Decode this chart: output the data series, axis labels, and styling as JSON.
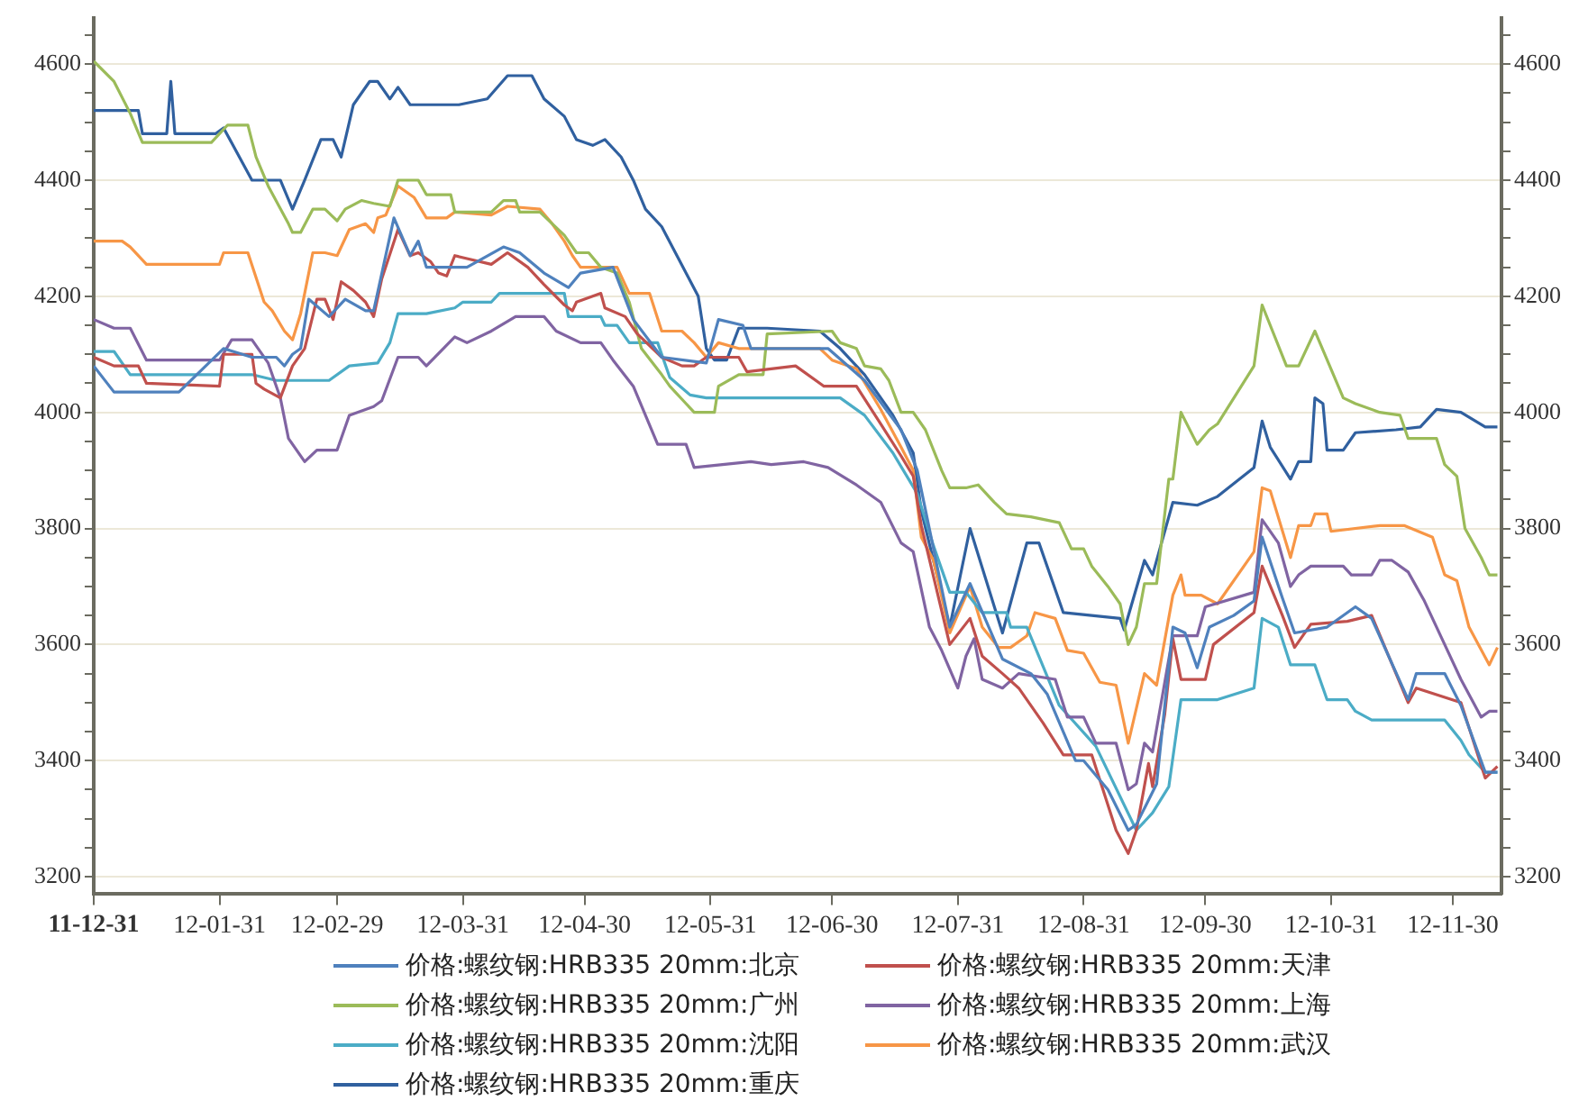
{
  "chart_data": {
    "type": "line",
    "grid": "y",
    "legend": "bottom",
    "marker": "none",
    "line_style": "solid",
    "xlim": [
      "2011-12-31",
      "2012-12-12"
    ],
    "xticks": [
      {
        "value": "2011-12-31",
        "label": "11-12-31"
      },
      {
        "value": "2012-01-31",
        "label": "12-01-31"
      },
      {
        "value": "2012-02-29",
        "label": "12-02-29"
      },
      {
        "value": "2012-03-31",
        "label": "12-03-31"
      },
      {
        "value": "2012-04-30",
        "label": "12-04-30"
      },
      {
        "value": "2012-05-31",
        "label": "12-05-31"
      },
      {
        "value": "2012-06-30",
        "label": "12-06-30"
      },
      {
        "value": "2012-07-31",
        "label": "12-07-31"
      },
      {
        "value": "2012-08-31",
        "label": "12-08-31"
      },
      {
        "value": "2012-09-30",
        "label": "12-09-30"
      },
      {
        "value": "2012-10-31",
        "label": "12-10-31"
      },
      {
        "value": "2012-11-30",
        "label": "12-11-30"
      }
    ],
    "ylim": [
      3170,
      4680
    ],
    "yticks": [
      3200,
      {
        "value": 3250,
        "label": null
      },
      {
        "value": 3300,
        "label": null
      },
      {
        "value": 3350,
        "label": null
      },
      3400,
      {
        "value": 3450,
        "label": null
      },
      {
        "value": 3500,
        "label": null
      },
      {
        "value": 3550,
        "label": null
      },
      3600,
      {
        "value": 3650,
        "label": null
      },
      {
        "value": 3700,
        "label": null
      },
      {
        "value": 3750,
        "label": null
      },
      3800,
      {
        "value": 3850,
        "label": null
      },
      {
        "value": 3900,
        "label": null
      },
      {
        "value": 3950,
        "label": null
      },
      4000,
      {
        "value": 4050,
        "label": null
      },
      {
        "value": 4100,
        "label": null
      },
      {
        "value": 4150,
        "label": null
      },
      4200,
      {
        "value": 4250,
        "label": null
      },
      {
        "value": 4300,
        "label": null
      },
      {
        "value": 4350,
        "label": null
      },
      4400,
      {
        "value": 4450,
        "label": null
      },
      {
        "value": 4500,
        "label": null
      },
      {
        "value": 4550,
        "label": null
      },
      4600,
      {
        "value": 4650,
        "label": null
      }
    ],
    "y2lim": [
      3170,
      4680
    ],
    "y2ticks": [
      3200,
      {
        "value": 3250,
        "label": null
      },
      {
        "value": 3300,
        "label": null
      },
      {
        "value": 3350,
        "label": null
      },
      3400,
      {
        "value": 3450,
        "label": null
      },
      {
        "value": 3500,
        "label": null
      },
      {
        "value": 3550,
        "label": null
      },
      3600,
      {
        "value": 3650,
        "label": null
      },
      {
        "value": 3700,
        "label": null
      },
      {
        "value": 3750,
        "label": null
      },
      3800,
      {
        "value": 3850,
        "label": null
      },
      {
        "value": 3900,
        "label": null
      },
      {
        "value": 3950,
        "label": null
      },
      4000,
      {
        "value": 4050,
        "label": null
      },
      {
        "value": 4100,
        "label": null
      },
      {
        "value": 4150,
        "label": null
      },
      4200,
      {
        "value": 4250,
        "label": null
      },
      {
        "value": 4300,
        "label": null
      },
      {
        "value": 4350,
        "label": null
      },
      4400,
      {
        "value": 4450,
        "label": null
      },
      {
        "value": 4500,
        "label": null
      },
      {
        "value": 4550,
        "label": null
      },
      4600,
      {
        "value": 4650,
        "label": null
      }
    ],
    "series": [
      {
        "name": "价格:螺纹钢:HRB335 20mm:北京",
        "color": "#4f81bd",
        "x": [
          "2011-12-31",
          "2012-01-05",
          "2012-01-21",
          "2012-02-01",
          "2012-02-08",
          "2012-02-14",
          "2012-02-16",
          "2012-02-18",
          "2012-02-20",
          "2012-02-22",
          "2012-02-27",
          "2012-03-02",
          "2012-03-07",
          "2012-03-09",
          "2012-03-14",
          "2012-03-18",
          "2012-03-20",
          "2012-03-22",
          "2012-04-01",
          "2012-04-10",
          "2012-04-14",
          "2012-04-20",
          "2012-04-26",
          "2012-04-29",
          "2012-05-07",
          "2012-05-12",
          "2012-05-19",
          "2012-05-30",
          "2012-06-02",
          "2012-06-08",
          "2012-06-10",
          "2012-06-29",
          "2012-07-08",
          "2012-07-17",
          "2012-07-21",
          "2012-07-29",
          "2012-08-03",
          "2012-08-11",
          "2012-08-18",
          "2012-08-22",
          "2012-08-29",
          "2012-08-31",
          "2012-09-06",
          "2012-09-11",
          "2012-09-13",
          "2012-09-18",
          "2012-09-22",
          "2012-09-25",
          "2012-09-28",
          "2012-10-01",
          "2012-10-07",
          "2012-10-12",
          "2012-10-14",
          "2012-10-19",
          "2012-10-22",
          "2012-10-30",
          "2012-11-06",
          "2012-11-10",
          "2012-11-19",
          "2012-11-21",
          "2012-11-28",
          "2012-12-02",
          "2012-12-08",
          "2012-12-11"
        ],
        "values": [
          4080,
          4035,
          4035,
          4110,
          4095,
          4095,
          4080,
          4100,
          4110,
          4195,
          4165,
          4195,
          4175,
          4175,
          4335,
          4270,
          4295,
          4250,
          4250,
          4285,
          4275,
          4240,
          4215,
          4240,
          4250,
          4160,
          4095,
          4085,
          4160,
          4150,
          4110,
          4110,
          4055,
          3970,
          3900,
          3630,
          3705,
          3575,
          3550,
          3515,
          3400,
          3400,
          3350,
          3280,
          3290,
          3360,
          3630,
          3620,
          3560,
          3630,
          3650,
          3675,
          3785,
          3680,
          3620,
          3630,
          3665,
          3645,
          3505,
          3550,
          3550,
          3495,
          3380,
          3380
        ]
      },
      {
        "name": "价格:螺纹钢:HRB335 20mm:天津",
        "color": "#c0504d",
        "x": [
          "2011-12-31",
          "2012-01-05",
          "2012-01-11",
          "2012-01-13",
          "2012-01-31",
          "2012-02-01",
          "2012-02-08",
          "2012-02-09",
          "2012-02-11",
          "2012-02-15",
          "2012-02-18",
          "2012-02-21",
          "2012-02-24",
          "2012-02-26",
          "2012-02-28",
          "2012-03-01",
          "2012-03-04",
          "2012-03-07",
          "2012-03-09",
          "2012-03-11",
          "2012-03-15",
          "2012-03-18",
          "2012-03-20",
          "2012-03-23",
          "2012-03-25",
          "2012-03-27",
          "2012-03-29",
          "2012-04-01",
          "2012-04-07",
          "2012-04-11",
          "2012-04-16",
          "2012-04-20",
          "2012-04-25",
          "2012-04-27",
          "2012-04-28",
          "2012-05-04",
          "2012-05-05",
          "2012-05-10",
          "2012-05-13",
          "2012-05-19",
          "2012-05-24",
          "2012-05-27",
          "2012-05-30",
          "2012-06-07",
          "2012-06-09",
          "2012-06-21",
          "2012-06-28",
          "2012-07-06",
          "2012-07-12",
          "2012-07-17",
          "2012-07-20",
          "2012-07-22",
          "2012-07-29",
          "2012-08-03",
          "2012-08-06",
          "2012-08-11",
          "2012-08-15",
          "2012-08-21",
          "2012-08-26",
          "2012-09-02",
          "2012-09-08",
          "2012-09-11",
          "2012-09-13",
          "2012-09-16",
          "2012-09-17",
          "2012-09-20",
          "2012-09-22",
          "2012-09-24",
          "2012-09-30",
          "2012-10-02",
          "2012-10-12",
          "2012-10-14",
          "2012-10-19",
          "2012-10-22",
          "2012-10-26",
          "2012-11-04",
          "2012-11-10",
          "2012-11-19",
          "2012-11-21",
          "2012-12-02",
          "2012-12-08",
          "2012-12-11"
        ],
        "values": [
          4095,
          4080,
          4080,
          4050,
          4045,
          4100,
          4100,
          4050,
          4040,
          4025,
          4080,
          4110,
          4195,
          4195,
          4160,
          4225,
          4210,
          4190,
          4165,
          4230,
          4315,
          4270,
          4275,
          4260,
          4240,
          4235,
          4270,
          4265,
          4255,
          4275,
          4250,
          4220,
          4185,
          4175,
          4190,
          4205,
          4180,
          4165,
          4135,
          4095,
          4080,
          4080,
          4095,
          4095,
          4070,
          4080,
          4045,
          4045,
          3980,
          3925,
          3890,
          3805,
          3600,
          3645,
          3580,
          3550,
          3525,
          3465,
          3410,
          3410,
          3280,
          3240,
          3280,
          3395,
          3355,
          3480,
          3610,
          3540,
          3540,
          3600,
          3655,
          3735,
          3650,
          3595,
          3635,
          3640,
          3650,
          3500,
          3525,
          3500,
          3370,
          3390
        ]
      },
      {
        "name": "价格:螺纹钢:HRB335 20mm:广州",
        "color": "#9bbb59",
        "x": [
          "2011-12-31",
          "2012-01-05",
          "2012-01-09",
          "2012-01-12",
          "2012-01-29",
          "2012-02-02",
          "2012-02-07",
          "2012-02-09",
          "2012-02-12",
          "2012-02-17",
          "2012-02-18",
          "2012-02-20",
          "2012-02-23",
          "2012-02-26",
          "2012-02-29",
          "2012-03-02",
          "2012-03-06",
          "2012-03-09",
          "2012-03-13",
          "2012-03-15",
          "2012-03-20",
          "2012-03-22",
          "2012-03-28",
          "2012-03-29",
          "2012-04-07",
          "2012-04-10",
          "2012-04-13",
          "2012-04-14",
          "2012-04-19",
          "2012-04-25",
          "2012-04-28",
          "2012-05-01",
          "2012-05-04",
          "2012-05-08",
          "2012-05-11",
          "2012-05-14",
          "2012-05-19",
          "2012-05-21",
          "2012-05-27",
          "2012-06-01",
          "2012-06-02",
          "2012-06-07",
          "2012-06-13",
          "2012-06-14",
          "2012-06-30",
          "2012-07-02",
          "2012-07-06",
          "2012-07-08",
          "2012-07-12",
          "2012-07-14",
          "2012-07-17",
          "2012-07-20",
          "2012-07-23",
          "2012-07-27",
          "2012-07-29",
          "2012-08-02",
          "2012-08-05",
          "2012-08-09",
          "2012-08-12",
          "2012-08-18",
          "2012-08-25",
          "2012-08-28",
          "2012-08-31",
          "2012-09-02",
          "2012-09-06",
          "2012-09-09",
          "2012-09-11",
          "2012-09-13",
          "2012-09-15",
          "2012-09-18",
          "2012-09-21",
          "2012-09-22",
          "2012-09-24",
          "2012-09-28",
          "2012-10-01",
          "2012-10-03",
          "2012-10-12",
          "2012-10-14",
          "2012-10-20",
          "2012-10-23",
          "2012-10-27",
          "2012-11-03",
          "2012-11-06",
          "2012-11-12",
          "2012-11-17",
          "2012-11-19",
          "2012-11-26",
          "2012-11-28",
          "2012-12-01",
          "2012-12-03",
          "2012-12-07",
          "2012-12-09",
          "2012-12-11"
        ],
        "values": [
          4605,
          4570,
          4515,
          4465,
          4465,
          4495,
          4495,
          4440,
          4390,
          4325,
          4310,
          4310,
          4350,
          4350,
          4330,
          4350,
          4365,
          4360,
          4355,
          4400,
          4400,
          4375,
          4375,
          4345,
          4345,
          4365,
          4365,
          4345,
          4345,
          4305,
          4275,
          4275,
          4250,
          4240,
          4190,
          4110,
          4065,
          4045,
          4000,
          4000,
          4045,
          4065,
          4065,
          4135,
          4140,
          4120,
          4110,
          4080,
          4075,
          4055,
          4000,
          4000,
          3970,
          3900,
          3870,
          3870,
          3875,
          3845,
          3825,
          3820,
          3810,
          3765,
          3765,
          3735,
          3700,
          3670,
          3600,
          3630,
          3705,
          3705,
          3885,
          3885,
          4000,
          3945,
          3970,
          3980,
          4080,
          4185,
          4080,
          4080,
          4140,
          4025,
          4015,
          4000,
          3995,
          3955,
          3955,
          3910,
          3890,
          3800,
          3750,
          3720,
          3720
        ]
      },
      {
        "name": "价格:螺纹钢:HRB335 20mm:上海",
        "color": "#8064a2",
        "x": [
          "2011-12-31",
          "2012-01-05",
          "2012-01-09",
          "2012-01-13",
          "2012-01-31",
          "2012-02-03",
          "2012-02-08",
          "2012-02-12",
          "2012-02-15",
          "2012-02-17",
          "2012-02-21",
          "2012-02-24",
          "2012-02-29",
          "2012-03-03",
          "2012-03-09",
          "2012-03-11",
          "2012-03-15",
          "2012-03-20",
          "2012-03-22",
          "2012-03-29",
          "2012-04-01",
          "2012-04-07",
          "2012-04-13",
          "2012-04-20",
          "2012-04-23",
          "2012-04-29",
          "2012-05-04",
          "2012-05-07",
          "2012-05-12",
          "2012-05-18",
          "2012-05-25",
          "2012-05-27",
          "2012-06-10",
          "2012-06-15",
          "2012-06-23",
          "2012-06-29",
          "2012-07-06",
          "2012-07-12",
          "2012-07-17",
          "2012-07-20",
          "2012-07-24",
          "2012-07-27",
          "2012-07-31",
          "2012-08-02",
          "2012-08-04",
          "2012-08-06",
          "2012-08-11",
          "2012-08-15",
          "2012-08-24",
          "2012-08-27",
          "2012-08-31",
          "2012-09-03",
          "2012-09-08",
          "2012-09-11",
          "2012-09-13",
          "2012-09-15",
          "2012-09-17",
          "2012-09-22",
          "2012-09-28",
          "2012-09-30",
          "2012-10-12",
          "2012-10-14",
          "2012-10-18",
          "2012-10-21",
          "2012-10-23",
          "2012-10-26",
          "2012-11-03",
          "2012-11-05",
          "2012-11-10",
          "2012-11-12",
          "2012-11-15",
          "2012-11-19",
          "2012-11-23",
          "2012-11-28",
          "2012-12-02",
          "2012-12-07",
          "2012-12-09",
          "2012-12-11"
        ],
        "values": [
          4160,
          4145,
          4145,
          4090,
          4090,
          4125,
          4125,
          4085,
          4025,
          3955,
          3915,
          3935,
          3935,
          3995,
          4010,
          4020,
          4095,
          4095,
          4080,
          4130,
          4120,
          4140,
          4165,
          4165,
          4140,
          4120,
          4120,
          4090,
          4045,
          3945,
          3945,
          3905,
          3915,
          3910,
          3915,
          3905,
          3875,
          3845,
          3775,
          3760,
          3630,
          3590,
          3525,
          3580,
          3610,
          3540,
          3525,
          3550,
          3540,
          3475,
          3475,
          3430,
          3430,
          3350,
          3360,
          3430,
          3415,
          3615,
          3615,
          3665,
          3690,
          3815,
          3775,
          3700,
          3720,
          3735,
          3735,
          3720,
          3720,
          3745,
          3745,
          3725,
          3675,
          3600,
          3540,
          3475,
          3485,
          3485
        ]
      },
      {
        "name": "价格:螺纹钢:HRB335 20mm:沈阳",
        "color": "#4bacc6",
        "x": [
          "2011-12-31",
          "2012-01-05",
          "2012-01-09",
          "2012-02-08",
          "2012-02-14",
          "2012-02-27",
          "2012-03-03",
          "2012-03-10",
          "2012-03-13",
          "2012-03-15",
          "2012-03-22",
          "2012-03-29",
          "2012-03-31",
          "2012-04-07",
          "2012-04-09",
          "2012-04-25",
          "2012-04-26",
          "2012-05-04",
          "2012-05-05",
          "2012-05-08",
          "2012-05-11",
          "2012-05-18",
          "2012-05-21",
          "2012-05-26",
          "2012-05-30",
          "2012-07-02",
          "2012-07-08",
          "2012-07-15",
          "2012-07-21",
          "2012-07-25",
          "2012-07-29",
          "2012-08-02",
          "2012-08-06",
          "2012-08-12",
          "2012-08-13",
          "2012-08-17",
          "2012-08-25",
          "2012-09-03",
          "2012-09-13",
          "2012-09-17",
          "2012-09-21",
          "2012-09-24",
          "2012-10-03",
          "2012-10-12",
          "2012-10-14",
          "2012-10-18",
          "2012-10-21",
          "2012-10-27",
          "2012-10-30",
          "2012-11-04",
          "2012-11-06",
          "2012-11-10",
          "2012-11-28",
          "2012-12-02",
          "2012-12-04",
          "2012-12-08",
          "2012-12-11"
        ],
        "values": [
          4105,
          4105,
          4065,
          4065,
          4055,
          4055,
          4080,
          4085,
          4120,
          4170,
          4170,
          4180,
          4190,
          4190,
          4205,
          4205,
          4165,
          4165,
          4150,
          4150,
          4120,
          4120,
          4060,
          4030,
          4025,
          4025,
          3995,
          3930,
          3860,
          3770,
          3690,
          3690,
          3655,
          3655,
          3630,
          3630,
          3495,
          3425,
          3280,
          3310,
          3355,
          3505,
          3505,
          3525,
          3645,
          3630,
          3565,
          3565,
          3505,
          3505,
          3485,
          3470,
          3470,
          3435,
          3410,
          3380,
          3380
        ]
      },
      {
        "name": "价格:螺纹钢:HRB335 20mm:武汉",
        "color": "#f79646",
        "x": [
          "2011-12-31",
          "2012-01-07",
          "2012-01-09",
          "2012-01-13",
          "2012-01-31",
          "2012-02-01",
          "2012-02-07",
          "2012-02-11",
          "2012-02-13",
          "2012-02-16",
          "2012-02-18",
          "2012-02-20",
          "2012-02-23",
          "2012-02-26",
          "2012-02-29",
          "2012-03-03",
          "2012-03-07",
          "2012-03-09",
          "2012-03-10",
          "2012-03-12",
          "2012-03-15",
          "2012-03-19",
          "2012-03-22",
          "2012-03-27",
          "2012-03-29",
          "2012-04-07",
          "2012-04-11",
          "2012-04-19",
          "2012-04-22",
          "2012-04-25",
          "2012-04-27",
          "2012-04-29",
          "2012-05-08",
          "2012-05-11",
          "2012-05-16",
          "2012-05-19",
          "2012-05-24",
          "2012-05-27",
          "2012-05-30",
          "2012-06-02",
          "2012-06-07",
          "2012-06-27",
          "2012-06-30",
          "2012-07-06",
          "2012-07-12",
          "2012-07-17",
          "2012-07-20",
          "2012-07-22",
          "2012-07-25",
          "2012-07-29",
          "2012-08-03",
          "2012-08-06",
          "2012-08-10",
          "2012-08-13",
          "2012-08-17",
          "2012-08-19",
          "2012-08-24",
          "2012-08-27",
          "2012-08-31",
          "2012-09-04",
          "2012-09-08",
          "2012-09-11",
          "2012-09-13",
          "2012-09-15",
          "2012-09-18",
          "2012-09-22",
          "2012-09-24",
          "2012-09-25",
          "2012-09-29",
          "2012-10-03",
          "2012-10-12",
          "2012-10-14",
          "2012-10-16",
          "2012-10-21",
          "2012-10-23",
          "2012-10-26",
          "2012-10-27",
          "2012-10-30",
          "2012-10-31",
          "2012-11-12",
          "2012-11-18",
          "2012-11-25",
          "2012-11-28",
          "2012-12-01",
          "2012-12-04",
          "2012-12-09",
          "2012-12-11"
        ],
        "values": [
          4295,
          4295,
          4285,
          4255,
          4255,
          4275,
          4275,
          4190,
          4175,
          4140,
          4125,
          4170,
          4275,
          4275,
          4270,
          4315,
          4325,
          4310,
          4335,
          4340,
          4390,
          4370,
          4335,
          4335,
          4345,
          4340,
          4355,
          4350,
          4325,
          4295,
          4270,
          4250,
          4250,
          4205,
          4205,
          4140,
          4140,
          4120,
          4095,
          4120,
          4110,
          4110,
          4090,
          4075,
          4005,
          3940,
          3900,
          3785,
          3745,
          3620,
          3700,
          3630,
          3595,
          3595,
          3615,
          3655,
          3645,
          3590,
          3585,
          3535,
          3530,
          3430,
          3490,
          3550,
          3530,
          3685,
          3720,
          3685,
          3685,
          3670,
          3760,
          3870,
          3865,
          3750,
          3805,
          3805,
          3825,
          3825,
          3795,
          3805,
          3805,
          3785,
          3720,
          3710,
          3630,
          3565,
          3595
        ]
      },
      {
        "name": "价格:螺纹钢:HRB335 20mm:重庆",
        "color": "#30609f",
        "x": [
          "2011-12-31",
          "2012-01-11",
          "2012-01-12",
          "2012-01-18",
          "2012-01-19",
          "2012-01-20",
          "2012-01-30",
          "2012-02-01",
          "2012-02-08",
          "2012-02-15",
          "2012-02-18",
          "2012-02-21",
          "2012-02-25",
          "2012-02-28",
          "2012-03-01",
          "2012-03-04",
          "2012-03-08",
          "2012-03-10",
          "2012-03-13",
          "2012-03-15",
          "2012-03-18",
          "2012-03-30",
          "2012-04-06",
          "2012-04-11",
          "2012-04-17",
          "2012-04-20",
          "2012-04-25",
          "2012-04-28",
          "2012-05-02",
          "2012-05-05",
          "2012-05-09",
          "2012-05-12",
          "2012-05-15",
          "2012-05-19",
          "2012-05-22",
          "2012-05-25",
          "2012-05-28",
          "2012-05-30",
          "2012-06-01",
          "2012-06-04",
          "2012-06-07",
          "2012-06-14",
          "2012-06-27",
          "2012-07-02",
          "2012-07-08",
          "2012-07-15",
          "2012-07-20",
          "2012-07-22",
          "2012-07-29",
          "2012-08-03",
          "2012-08-11",
          "2012-08-17",
          "2012-08-20",
          "2012-08-26",
          "2012-09-09",
          "2012-09-10",
          "2012-09-15",
          "2012-09-17",
          "2012-09-22",
          "2012-09-28",
          "2012-10-03",
          "2012-10-12",
          "2012-10-14",
          "2012-10-16",
          "2012-10-21",
          "2012-10-23",
          "2012-10-26",
          "2012-10-27",
          "2012-10-29",
          "2012-10-30",
          "2012-11-03",
          "2012-11-06",
          "2012-11-16",
          "2012-11-22",
          "2012-11-26",
          "2012-12-02",
          "2012-12-08",
          "2012-12-11"
        ],
        "values": [
          4520,
          4520,
          4480,
          4480,
          4570,
          4480,
          4480,
          4490,
          4400,
          4400,
          4350,
          4400,
          4470,
          4470,
          4440,
          4530,
          4570,
          4570,
          4540,
          4560,
          4530,
          4530,
          4540,
          4580,
          4580,
          4540,
          4510,
          4470,
          4460,
          4470,
          4440,
          4400,
          4350,
          4320,
          4280,
          4240,
          4200,
          4110,
          4090,
          4090,
          4145,
          4145,
          4140,
          4110,
          4065,
          3995,
          3930,
          3830,
          3630,
          3800,
          3620,
          3775,
          3775,
          3655,
          3645,
          3625,
          3745,
          3720,
          3845,
          3840,
          3855,
          3905,
          3985,
          3940,
          3885,
          3915,
          3915,
          4025,
          4015,
          3935,
          3935,
          3965,
          3970,
          3975,
          4005,
          4000,
          3975,
          3975
        ]
      }
    ]
  }
}
